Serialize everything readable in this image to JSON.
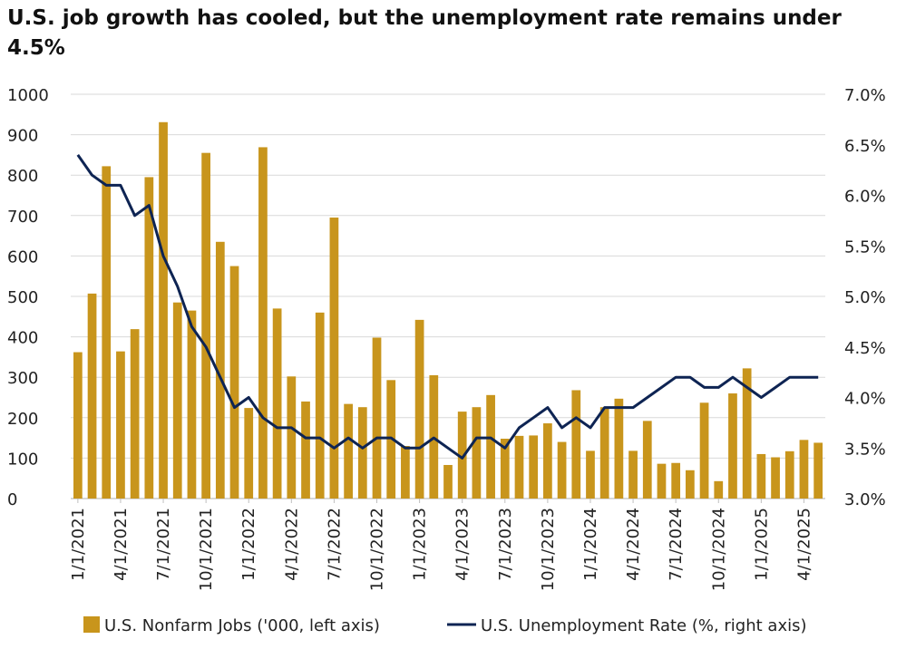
{
  "chart_data": {
    "type": "bar+line",
    "title": "U.S. job growth has cooled, but the unemployment rate remains under 4.5%",
    "x_tick_labels": [
      "1/1/2021",
      "4/1/2021",
      "7/1/2021",
      "10/1/2021",
      "1/1/2022",
      "4/1/2022",
      "7/1/2022",
      "10/1/2022",
      "1/1/2023",
      "4/1/2023",
      "7/1/2023",
      "10/1/2023",
      "1/1/2024",
      "4/1/2024",
      "7/1/2024",
      "10/1/2024",
      "1/1/2025",
      "4/1/2025"
    ],
    "left_axis": {
      "ylim": [
        0,
        1000
      ],
      "ticks": [
        "0",
        "100",
        "200",
        "300",
        "400",
        "500",
        "600",
        "700",
        "800",
        "900",
        "1000"
      ]
    },
    "right_axis": {
      "ylim": [
        3.0,
        7.0
      ],
      "ticks": [
        "3.0%",
        "3.5%",
        "4.0%",
        "4.5%",
        "5.0%",
        "5.5%",
        "6.0%",
        "6.5%",
        "7.0%"
      ]
    },
    "bar_color": "#C8951C",
    "line_color": "#0E2453",
    "series": [
      {
        "name": "U.S. Nonfarm Jobs ('000, left axis)",
        "kind": "bar",
        "values": [
          362,
          507,
          822,
          364,
          419,
          795,
          931,
          485,
          465,
          855,
          635,
          575,
          224,
          869,
          470,
          302,
          240,
          460,
          695,
          234,
          226,
          398,
          293,
          130,
          442,
          305,
          83,
          215,
          226,
          256,
          148,
          155,
          156,
          186,
          140,
          268,
          118,
          226,
          247,
          118,
          192,
          86,
          88,
          70,
          237,
          43,
          260,
          322,
          110,
          102,
          117,
          145,
          138
        ]
      },
      {
        "name": "U.S. Unemployment Rate (%, right axis)",
        "kind": "line",
        "values": [
          6.4,
          6.2,
          6.1,
          6.1,
          5.8,
          5.9,
          5.4,
          5.1,
          4.7,
          4.5,
          4.2,
          3.9,
          4.0,
          3.8,
          3.7,
          3.7,
          3.6,
          3.6,
          3.5,
          3.6,
          3.5,
          3.6,
          3.6,
          3.5,
          3.5,
          3.6,
          3.5,
          3.4,
          3.6,
          3.6,
          3.5,
          3.7,
          3.8,
          3.9,
          3.7,
          3.8,
          3.7,
          3.9,
          3.9,
          3.9,
          4.0,
          4.1,
          4.2,
          4.2,
          4.1,
          4.1,
          4.2,
          4.1,
          4.0,
          4.1,
          4.2,
          4.2,
          4.2
        ]
      }
    ],
    "legend": {
      "position": "bottom"
    }
  }
}
